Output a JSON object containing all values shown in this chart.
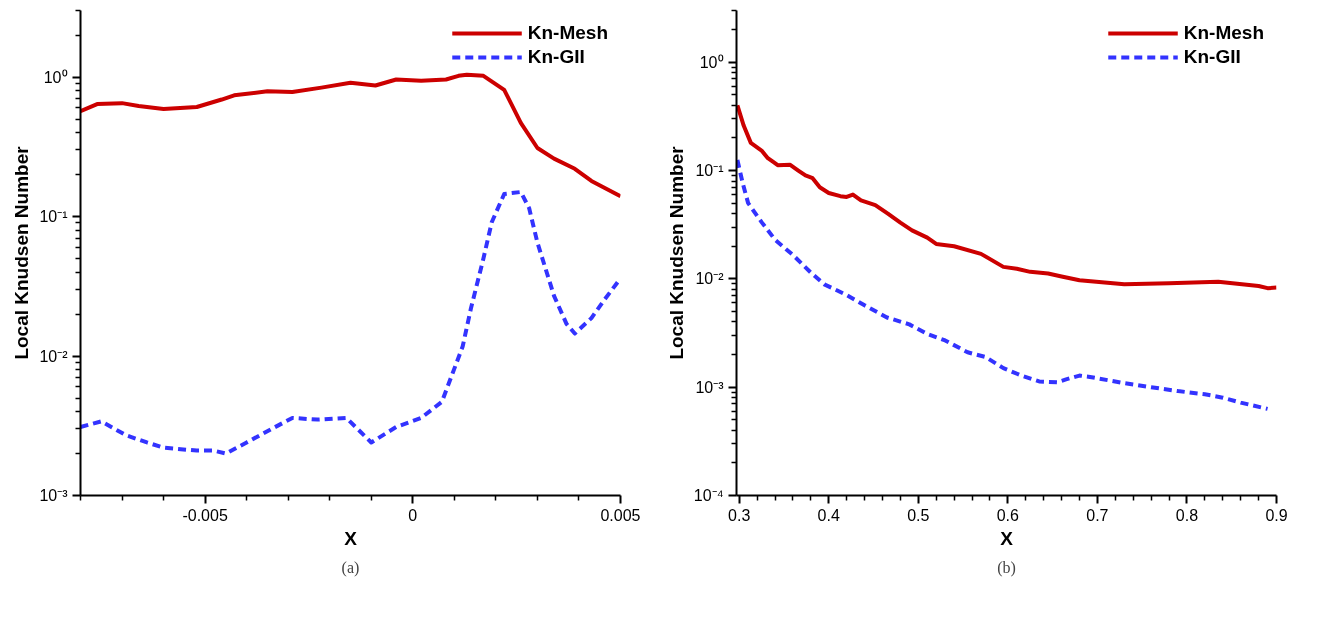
{
  "chart_data": [
    {
      "type": "line",
      "xlabel": "X",
      "ylabel": "Local Knudsen Number",
      "log": "y",
      "legend": "top right",
      "grid": false,
      "marker": "none",
      "xlim": [
        -0.008,
        0.005
      ],
      "ylim": [
        0.001,
        3
      ],
      "xticks": [
        {
          "value": -0.008,
          "label": null
        },
        {
          "value": -0.007,
          "label": null
        },
        {
          "value": -0.006,
          "label": null
        },
        {
          "value": -0.005,
          "label": "-0.005"
        },
        {
          "value": -0.004,
          "label": null
        },
        {
          "value": -0.003,
          "label": null
        },
        {
          "value": -0.002,
          "label": null
        },
        {
          "value": -0.001,
          "label": null
        },
        0,
        {
          "value": 0.001,
          "label": null
        },
        {
          "value": 0.002,
          "label": null
        },
        {
          "value": 0.003,
          "label": null
        },
        {
          "value": 0.004,
          "label": null
        },
        0.005
      ],
      "yticks": [
        {
          "value": 0.001,
          "label": "10⁻³"
        },
        {
          "value": 0.01,
          "label": "10⁻²"
        },
        {
          "value": 0.1,
          "label": "10⁻¹"
        },
        {
          "value": 1,
          "label": "10⁰"
        }
      ],
      "annotations": [
        "(a)"
      ],
      "series": [
        {
          "name": "Kn-Mesh",
          "color": "#cc0000",
          "line_style": "solid",
          "x": [
            -0.008,
            -0.0076,
            -0.007,
            -0.0066,
            -0.006,
            -0.0052,
            -0.0046,
            -0.0043,
            -0.0035,
            -0.0029,
            -0.0022,
            -0.0015,
            -0.0009,
            -0.0004,
            0.0002,
            0.0008,
            0.0011,
            0.0013,
            0.0017,
            0.0022,
            0.0026,
            0.003,
            0.0034,
            0.0039,
            0.0043,
            0.005
          ],
          "values": [
            0.57,
            0.64,
            0.65,
            0.62,
            0.59,
            0.61,
            0.69,
            0.74,
            0.79,
            0.78,
            0.84,
            0.91,
            0.87,
            0.96,
            0.94,
            0.96,
            1.02,
            1.04,
            1.02,
            0.81,
            0.47,
            0.31,
            0.26,
            0.22,
            0.18,
            0.14
          ]
        },
        {
          "name": "Kn-GII",
          "color": "#3333ff",
          "line_style": "dashed",
          "x": [
            -0.008,
            -0.0075,
            -0.0069,
            -0.0064,
            -0.006,
            -0.0052,
            -0.0048,
            -0.0045,
            -0.004,
            -0.0034,
            -0.0029,
            -0.0023,
            -0.0016,
            -0.001,
            -0.0004,
            0.0002,
            0.0007,
            0.0012,
            0.0014,
            0.0017,
            0.0019,
            0.0022,
            0.0026,
            0.0028,
            0.003,
            0.0034,
            0.0037,
            0.0039,
            0.0043,
            0.0046,
            0.005
          ],
          "values": [
            0.0031,
            0.0034,
            0.0027,
            0.0024,
            0.0022,
            0.0021,
            0.0021,
            0.002,
            0.0024,
            0.003,
            0.0036,
            0.0035,
            0.0036,
            0.0024,
            0.0031,
            0.0036,
            0.0047,
            0.0117,
            0.022,
            0.05,
            0.091,
            0.145,
            0.15,
            0.115,
            0.065,
            0.027,
            0.017,
            0.0145,
            0.0187,
            0.025,
            0.036
          ]
        }
      ]
    },
    {
      "type": "line",
      "xlabel": "X",
      "ylabel": "Local Knudsen Number",
      "log": "y",
      "legend": "top right",
      "grid": false,
      "marker": "none",
      "xlim": [
        0.297,
        0.9
      ],
      "ylim": [
        0.0001,
        3
      ],
      "xticks": [
        0.3,
        {
          "value": 0.32,
          "label": null
        },
        {
          "value": 0.34,
          "label": null
        },
        {
          "value": 0.36,
          "label": null
        },
        {
          "value": 0.38,
          "label": null
        },
        0.4,
        {
          "value": 0.42,
          "label": null
        },
        {
          "value": 0.44,
          "label": null
        },
        {
          "value": 0.46,
          "label": null
        },
        {
          "value": 0.48,
          "label": null
        },
        0.5,
        {
          "value": 0.52,
          "label": null
        },
        {
          "value": 0.54,
          "label": null
        },
        {
          "value": 0.56,
          "label": null
        },
        {
          "value": 0.58,
          "label": null
        },
        0.6,
        {
          "value": 0.62,
          "label": null
        },
        {
          "value": 0.64,
          "label": null
        },
        {
          "value": 0.66,
          "label": null
        },
        {
          "value": 0.68,
          "label": null
        },
        0.7,
        {
          "value": 0.72,
          "label": null
        },
        {
          "value": 0.74,
          "label": null
        },
        {
          "value": 0.76,
          "label": null
        },
        {
          "value": 0.78,
          "label": null
        },
        0.8,
        {
          "value": 0.82,
          "label": null
        },
        {
          "value": 0.84,
          "label": null
        },
        {
          "value": 0.86,
          "label": null
        },
        {
          "value": 0.88,
          "label": null
        },
        0.9
      ],
      "yticks": [
        {
          "value": 0.0001,
          "label": "10⁻⁴"
        },
        {
          "value": 0.001,
          "label": "10⁻³"
        },
        {
          "value": 0.01,
          "label": "10⁻²"
        },
        {
          "value": 0.1,
          "label": "10⁻¹"
        },
        {
          "value": 1,
          "label": "10⁰"
        }
      ],
      "annotations": [
        "(b)"
      ],
      "series": [
        {
          "name": "Kn-Mesh",
          "color": "#cc0000",
          "line_style": "solid",
          "x": [
            0.298,
            0.305,
            0.313,
            0.325,
            0.332,
            0.338,
            0.343,
            0.357,
            0.366,
            0.374,
            0.382,
            0.39,
            0.4,
            0.413,
            0.42,
            0.427,
            0.436,
            0.452,
            0.466,
            0.48,
            0.493,
            0.51,
            0.52,
            0.54,
            0.57,
            0.595,
            0.61,
            0.625,
            0.645,
            0.66,
            0.68,
            0.73,
            0.78,
            0.835,
            0.88,
            0.89,
            0.9
          ],
          "values": [
            0.4,
            0.26,
            0.18,
            0.153,
            0.13,
            0.12,
            0.112,
            0.113,
            0.1,
            0.09,
            0.085,
            0.07,
            0.062,
            0.058,
            0.057,
            0.06,
            0.053,
            0.048,
            0.04,
            0.033,
            0.028,
            0.024,
            0.021,
            0.02,
            0.017,
            0.0129,
            0.0124,
            0.0116,
            0.0112,
            0.0105,
            0.0097,
            0.0089,
            0.0091,
            0.0094,
            0.0086,
            0.0082,
            0.0083
          ]
        },
        {
          "name": "Kn-GII",
          "color": "#3333ff",
          "line_style": "dashed",
          "x": [
            0.298,
            0.304,
            0.31,
            0.325,
            0.34,
            0.36,
            0.38,
            0.395,
            0.42,
            0.44,
            0.465,
            0.49,
            0.51,
            0.53,
            0.555,
            0.575,
            0.595,
            0.615,
            0.635,
            0.655,
            0.665,
            0.68,
            0.69,
            0.73,
            0.76,
            0.79,
            0.82,
            0.84,
            0.86,
            0.89
          ],
          "values": [
            0.125,
            0.076,
            0.05,
            0.0334,
            0.023,
            0.0166,
            0.0114,
            0.0089,
            0.0071,
            0.0057,
            0.0044,
            0.0038,
            0.0031,
            0.0027,
            0.0021,
            0.0019,
            0.0015,
            0.00128,
            0.00113,
            0.00111,
            0.00118,
            0.00128,
            0.00125,
            0.00109,
            0.001,
            0.00092,
            0.00086,
            0.0008,
            0.00072,
            0.00063
          ]
        }
      ]
    }
  ]
}
